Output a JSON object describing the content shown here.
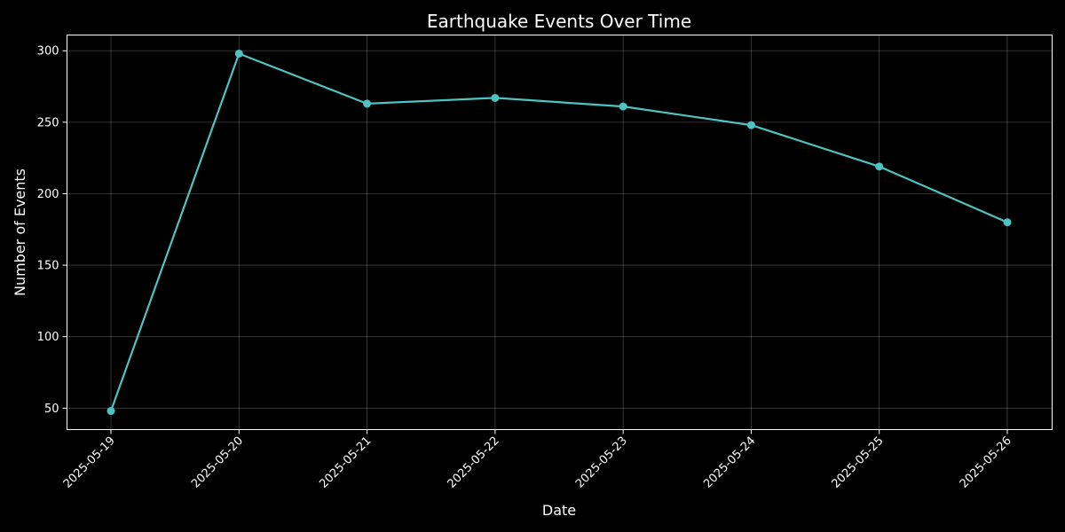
{
  "chart_data": {
    "type": "line",
    "title": "Earthquake Events Over Time",
    "xlabel": "Date",
    "ylabel": "Number of Events",
    "x": [
      "2025-05-19",
      "2025-05-20",
      "2025-05-21",
      "2025-05-22",
      "2025-05-23",
      "2025-05-24",
      "2025-05-25",
      "2025-05-26"
    ],
    "y": [
      48,
      298,
      263,
      267,
      261,
      248,
      219,
      180
    ],
    "yticks": [
      50,
      100,
      150,
      200,
      250,
      300
    ],
    "ylim": [
      35,
      311
    ],
    "grid": true,
    "legend": false,
    "colors": {
      "background": "#000000",
      "line": "#4ec3c3",
      "text": "#ffffff"
    }
  }
}
